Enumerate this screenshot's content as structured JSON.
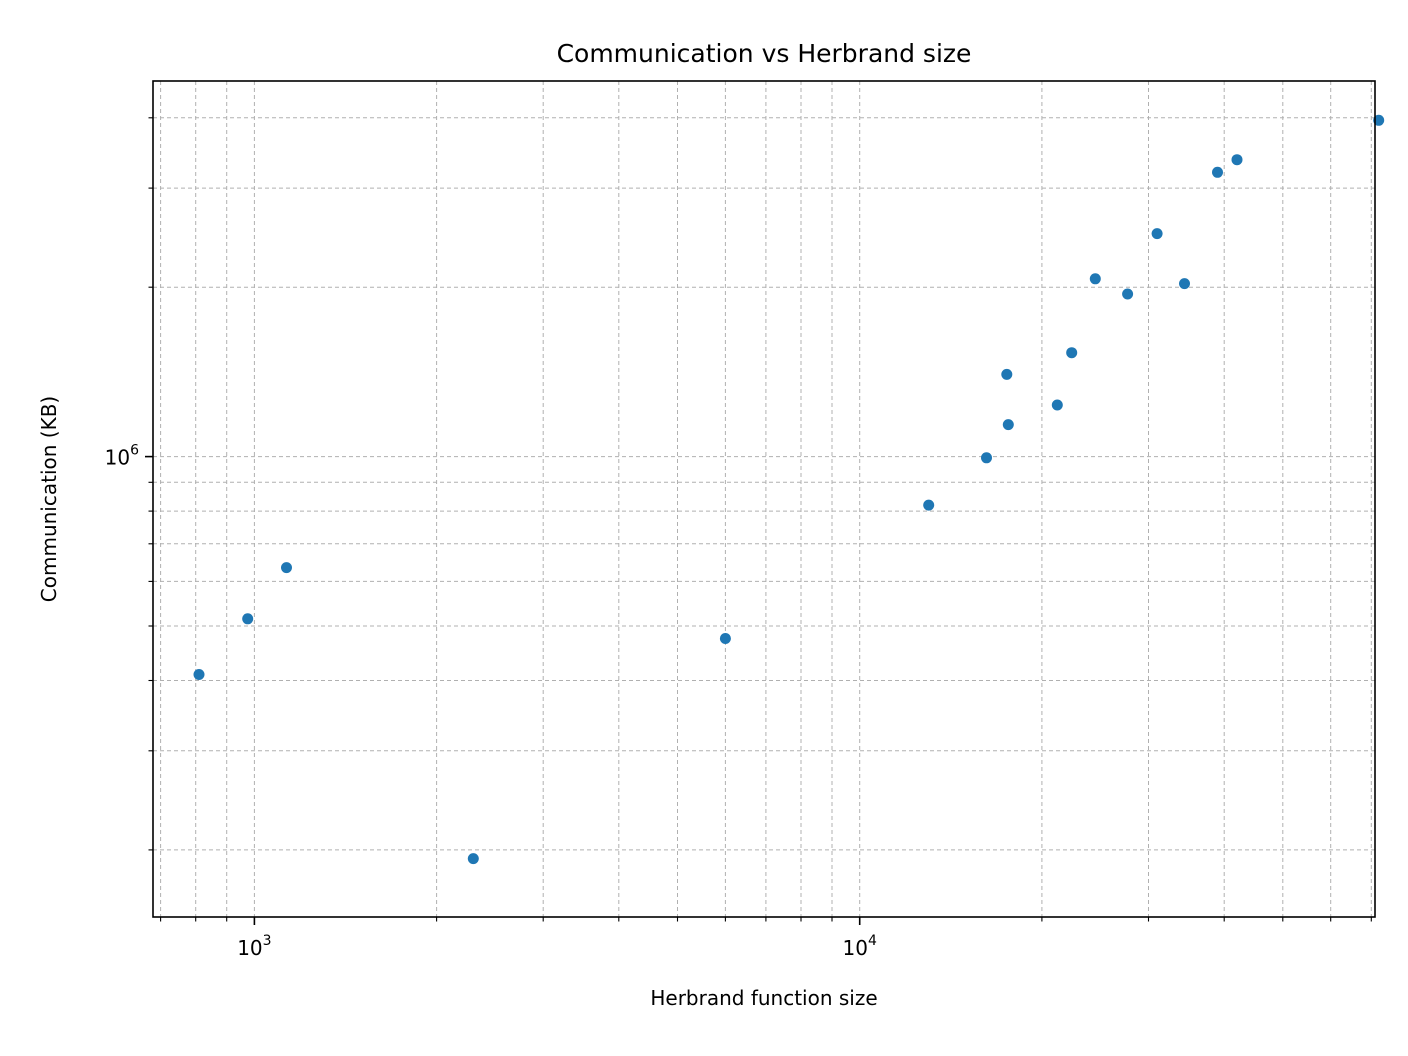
{
  "chart_data": {
    "type": "scatter",
    "title": "Communication vs Herbrand size",
    "xlabel": "Herbrand function size",
    "ylabel": "Communication (KB)",
    "xscale": "log",
    "yscale": "log",
    "xlim": [
      680,
      71000
    ],
    "ylim": [
      152000,
      4650000
    ],
    "grid": true,
    "color": "#1f77b4",
    "x_ticks": [
      {
        "base": "10",
        "exp": "3",
        "value": 1000
      },
      {
        "base": "10",
        "exp": "4",
        "value": 10000
      }
    ],
    "y_ticks": [
      {
        "base": "10",
        "exp": "6",
        "value": 1000000
      }
    ],
    "points": [
      {
        "x": 810,
        "y": 410000
      },
      {
        "x": 975,
        "y": 515000
      },
      {
        "x": 1130,
        "y": 635000
      },
      {
        "x": 2300,
        "y": 193000
      },
      {
        "x": 6000,
        "y": 475000
      },
      {
        "x": 13000,
        "y": 820000
      },
      {
        "x": 16200,
        "y": 995000
      },
      {
        "x": 17500,
        "y": 1400000
      },
      {
        "x": 17600,
        "y": 1140000
      },
      {
        "x": 21200,
        "y": 1235000
      },
      {
        "x": 22400,
        "y": 1530000
      },
      {
        "x": 24500,
        "y": 2070000
      },
      {
        "x": 27700,
        "y": 1945000
      },
      {
        "x": 31000,
        "y": 2490000
      },
      {
        "x": 34400,
        "y": 2030000
      },
      {
        "x": 39000,
        "y": 3200000
      },
      {
        "x": 42000,
        "y": 3370000
      },
      {
        "x": 72000,
        "y": 3960000
      }
    ]
  }
}
